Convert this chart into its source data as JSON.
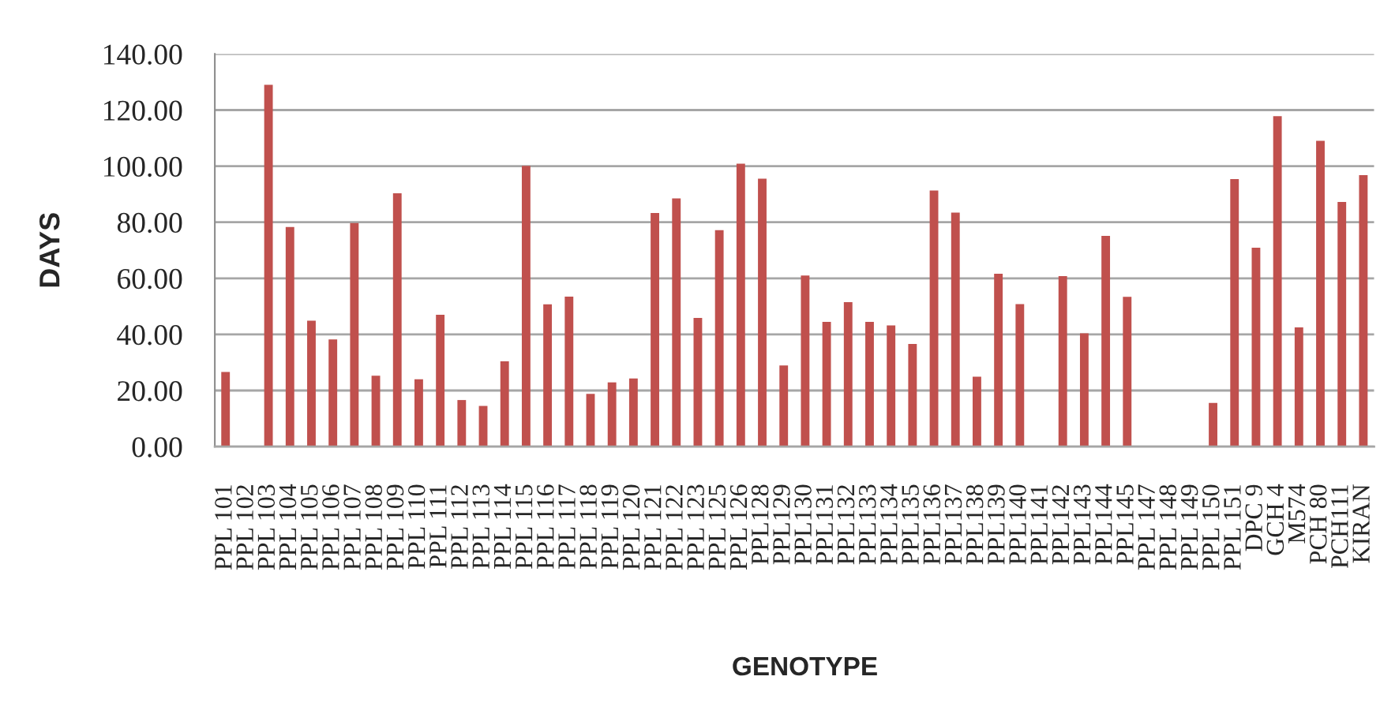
{
  "chart_data": {
    "type": "bar",
    "xlabel": "GENOTYPE",
    "ylabel": "DAYS",
    "color": "#c0504d",
    "grid": "y",
    "categories": [
      "PPL 101",
      "PPL 102",
      "PPL 103",
      "PPL 104",
      "PPL 105",
      "PPL 106",
      "PPL 107",
      "PPL 108",
      "PPL 109",
      "PPL 110",
      "PPL 111",
      "PPL 112",
      "PPL 113",
      "PPL 114",
      "PPL 115",
      "PPL 116",
      "PPL 117",
      "PPL 118",
      "PPL 119",
      "PPL 120",
      "PPL 121",
      "PPL 122",
      "PPL 123",
      "PPL 125",
      "PPL 126",
      "PPL128",
      "PPL129",
      "PPL130",
      "PPL131",
      "PPL132",
      "PPL133",
      "PPL134",
      "PPL135",
      "PPL136",
      "PPL137",
      "PPL138",
      "PPL139",
      "PPL140",
      "PPL141",
      "PPL142",
      "PPL143",
      "PPL144",
      "PPL145",
      "PPL 147",
      "PPL 148",
      "PPL 149",
      "PPL 150",
      "PPL 151",
      "DPC 9",
      "GCH 4",
      "M574",
      "PCH 80",
      "PCH111",
      "KIRAN"
    ],
    "values": [
      26.6,
      null,
      129,
      78.3,
      44.9,
      38.2,
      79.7,
      25.3,
      90.3,
      24,
      47,
      16.6,
      14.5,
      30.4,
      100.1,
      50.7,
      53.5,
      18.8,
      22.9,
      24.3,
      83.3,
      88.5,
      45.9,
      77.2,
      100.9,
      95.5,
      28.9,
      61,
      44.5,
      51.5,
      44.5,
      43.2,
      36.6,
      91.3,
      83.4,
      24.9,
      61.6,
      50.8,
      null,
      60.8,
      40.4,
      75.1,
      53.4,
      null,
      null,
      null,
      15.6,
      95.4,
      70.9,
      117.8,
      42.5,
      109,
      87.2,
      96.8
    ],
    "ylim": [
      0,
      140
    ],
    "yticks": [
      {
        "value": 0,
        "label": "0.00"
      },
      {
        "value": 20,
        "label": "20.00"
      },
      {
        "value": 40,
        "label": "40.00"
      },
      {
        "value": 60,
        "label": "60.00"
      },
      {
        "value": 80,
        "label": "80.00"
      },
      {
        "value": 100,
        "label": "100.00"
      },
      {
        "value": 120,
        "label": "120.00"
      },
      {
        "value": 140,
        "label": "140.00"
      }
    ]
  }
}
